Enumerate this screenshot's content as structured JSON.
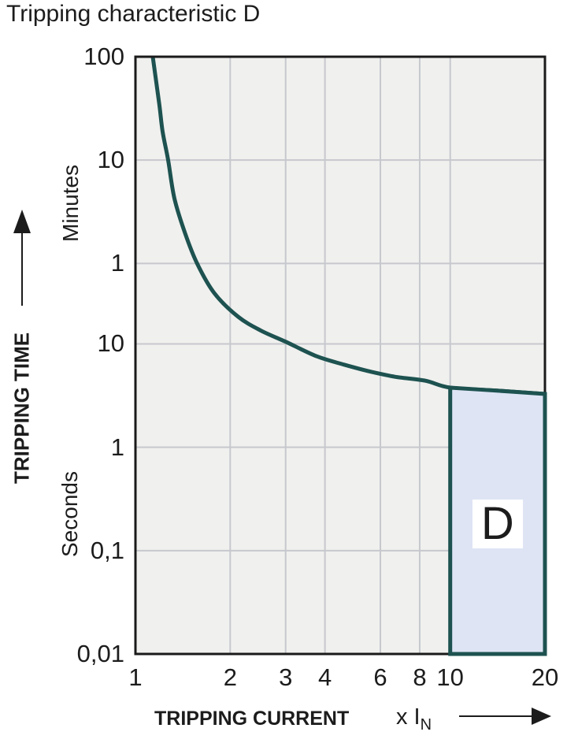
{
  "title": "Tripping characteristic D",
  "axes": {
    "y_title": "TRIPPING TIME",
    "y_unit_upper": "Minutes",
    "y_unit_lower": "Seconds",
    "x_title": "TRIPPING CURRENT",
    "x_unit_prefix": "x I",
    "x_unit_sub": "N"
  },
  "region_label": "D",
  "icons": {
    "y_axis_arrow": "up-arrow",
    "x_axis_arrow": "right-arrow"
  },
  "colors": {
    "curve": "#1d5250",
    "region_fill": "#dee4f4",
    "region_border": "#1d5250",
    "plot_bg": "#f0f0ee",
    "grid": "#c6c8cd",
    "border": "#1a1a1a",
    "text": "#1c1c1c"
  },
  "chart_data": {
    "type": "line",
    "title": "Tripping characteristic D",
    "xlabel": "TRIPPING CURRENT (x IN)",
    "ylabel": "TRIPPING TIME (minutes / seconds)",
    "x_scale": "log",
    "y_scale": "log",
    "xlim": [
      1,
      20
    ],
    "ylim_seconds": [
      0.01,
      6000
    ],
    "x_ticks": [
      {
        "label": "1",
        "value": 1
      },
      {
        "label": "2",
        "value": 2
      },
      {
        "label": "3",
        "value": 3
      },
      {
        "label": "4",
        "value": 4
      },
      {
        "label": "6",
        "value": 6
      },
      {
        "label": "8",
        "value": 8
      },
      {
        "label": "10",
        "value": 10
      },
      {
        "label": "20",
        "value": 20
      }
    ],
    "y_ticks": [
      {
        "label": "100",
        "seconds": 6000,
        "unit": "minutes"
      },
      {
        "label": "10",
        "seconds": 600,
        "unit": "minutes"
      },
      {
        "label": "1",
        "seconds": 60,
        "unit": "minutes"
      },
      {
        "label": "10",
        "seconds": 10,
        "unit": "seconds"
      },
      {
        "label": "1",
        "seconds": 1,
        "unit": "seconds"
      },
      {
        "label": "0,1",
        "seconds": 0.1,
        "unit": "seconds"
      },
      {
        "label": "0,01",
        "seconds": 0.01,
        "unit": "seconds"
      }
    ],
    "x_gridlines": [
      2,
      3,
      4,
      6,
      8,
      10
    ],
    "y_gridlines_seconds": [
      600,
      60,
      10,
      1,
      0.1
    ],
    "grid": true,
    "series": [
      {
        "name": "tripping-curve",
        "points": [
          [
            1.135,
            6000
          ],
          [
            1.19,
            2100
          ],
          [
            1.22,
            1130
          ],
          [
            1.27,
            600
          ],
          [
            1.33,
            255
          ],
          [
            1.44,
            116
          ],
          [
            1.57,
            60
          ],
          [
            1.78,
            31
          ],
          [
            2.12,
            18.3
          ],
          [
            2.51,
            13.4
          ],
          [
            3.0,
            10.5
          ],
          [
            3.76,
            7.6
          ],
          [
            4.6,
            6.3
          ],
          [
            5.57,
            5.4
          ],
          [
            6.7,
            4.8
          ],
          [
            8.34,
            4.4
          ],
          [
            10,
            3.77
          ],
          [
            14.2,
            3.52
          ],
          [
            20,
            3.28
          ]
        ]
      }
    ],
    "region": {
      "label": "D",
      "x_from": 10,
      "x_to": 20,
      "y_from_seconds": 0.01,
      "note": "shaded band between 10 and 20 x IN, below the tripping curve"
    }
  }
}
